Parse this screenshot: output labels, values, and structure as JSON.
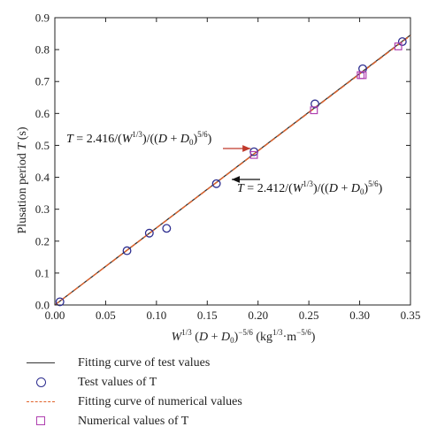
{
  "chart_data": {
    "type": "scatter",
    "xlim": [
      0.0,
      0.35
    ],
    "ylim": [
      0.0,
      0.9
    ],
    "xticks": [
      "0.00",
      "0.05",
      "0.10",
      "0.15",
      "0.20",
      "0.25",
      "0.30",
      "0.35"
    ],
    "yticks": [
      "0.0",
      "0.1",
      "0.2",
      "0.3",
      "0.4",
      "0.5",
      "0.6",
      "0.7",
      "0.8",
      "0.9"
    ],
    "xlabel": "W^(1/3) (D + D0)^(−5/6) (kg^(1/3)·m^(−5/6))",
    "ylabel": "Plusation period T (s)",
    "grid": false,
    "legend_position": "bottom",
    "series": [
      {
        "name": "Fitting curve of test values",
        "kind": "line",
        "slope": 2.416,
        "x": [
          0.0,
          0.35
        ],
        "color": "#333333"
      },
      {
        "name": "Test values of T",
        "kind": "scatter",
        "marker": "circle",
        "color": "#2d2d8f",
        "points": [
          [
            0.005,
            0.01
          ],
          [
            0.071,
            0.17
          ],
          [
            0.093,
            0.225
          ],
          [
            0.11,
            0.24
          ],
          [
            0.159,
            0.38
          ],
          [
            0.196,
            0.48
          ],
          [
            0.256,
            0.63
          ],
          [
            0.303,
            0.74
          ],
          [
            0.342,
            0.825
          ]
        ]
      },
      {
        "name": "Fitting curve of numerical values",
        "kind": "line",
        "slope": 2.412,
        "x": [
          0.0,
          0.35
        ],
        "color": "#e0622a",
        "dash": true
      },
      {
        "name": "Numerical values of T",
        "kind": "scatter",
        "marker": "square",
        "color": "#b040b0",
        "points": [
          [
            0.196,
            0.47
          ],
          [
            0.255,
            0.61
          ],
          [
            0.301,
            0.72
          ],
          [
            0.303,
            0.72
          ],
          [
            0.338,
            0.81
          ]
        ]
      }
    ],
    "annotations": [
      {
        "text": "T = 2.416/(W^(1/3))/((D + D0)^(5/6)",
        "arrow_to": [
          0.197,
          0.475
        ],
        "arrow_color": "#c0392b"
      },
      {
        "text": "T = 2.412/(W^(1/3))/((D + D0)^(5/6)",
        "arrow_to": [
          0.16,
          0.395
        ],
        "arrow_color": "#111111"
      }
    ]
  },
  "legend": {
    "items": [
      "Fitting curve of test values",
      "Test values of T",
      "Fitting curve of numerical values",
      "Numerical values of T"
    ]
  }
}
